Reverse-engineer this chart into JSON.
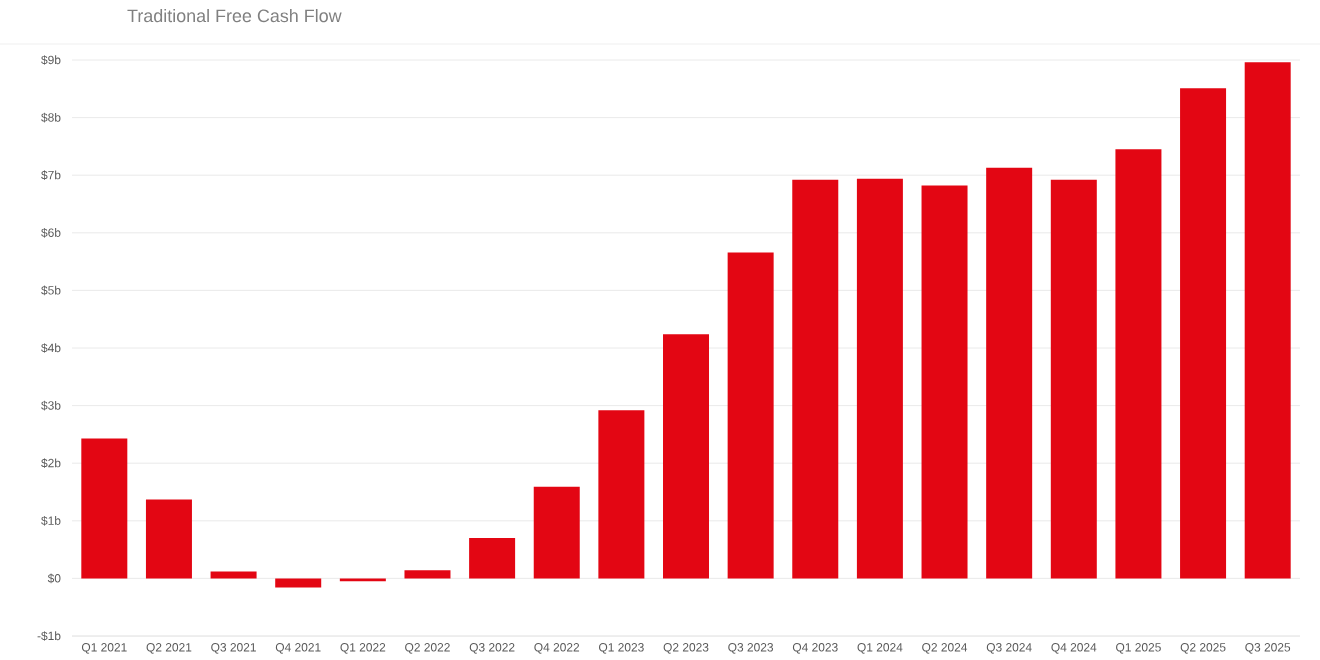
{
  "chart_data": {
    "type": "bar",
    "title": "Traditional Free Cash Flow",
    "categories": [
      "Q1 2021",
      "Q2 2021",
      "Q3 2021",
      "Q4 2021",
      "Q1 2022",
      "Q2 2022",
      "Q3 2022",
      "Q4 2022",
      "Q1 2023",
      "Q2 2023",
      "Q3 2023",
      "Q4 2023",
      "Q1 2024",
      "Q2 2024",
      "Q3 2024",
      "Q4 2024",
      "Q1 2025",
      "Q2 2025",
      "Q3 2025"
    ],
    "values": [
      2.43,
      1.37,
      0.12,
      -0.16,
      -0.05,
      0.14,
      0.7,
      1.59,
      2.92,
      4.24,
      5.66,
      6.92,
      6.94,
      6.82,
      7.13,
      6.92,
      7.45,
      8.51,
      8.96
    ],
    "color": "#e30613",
    "ylim": [
      -1,
      9
    ],
    "yticks": [
      {
        "value": -1,
        "label": "-$1b"
      },
      {
        "value": 0,
        "label": "$0"
      },
      {
        "value": 1,
        "label": "$1b"
      },
      {
        "value": 2,
        "label": "$2b"
      },
      {
        "value": 3,
        "label": "$3b"
      },
      {
        "value": 4,
        "label": "$4b"
      },
      {
        "value": 5,
        "label": "$5b"
      },
      {
        "value": 6,
        "label": "$6b"
      },
      {
        "value": 7,
        "label": "$7b"
      },
      {
        "value": 8,
        "label": "$8b"
      },
      {
        "value": 9,
        "label": "$9b"
      }
    ],
    "grid": "y"
  }
}
